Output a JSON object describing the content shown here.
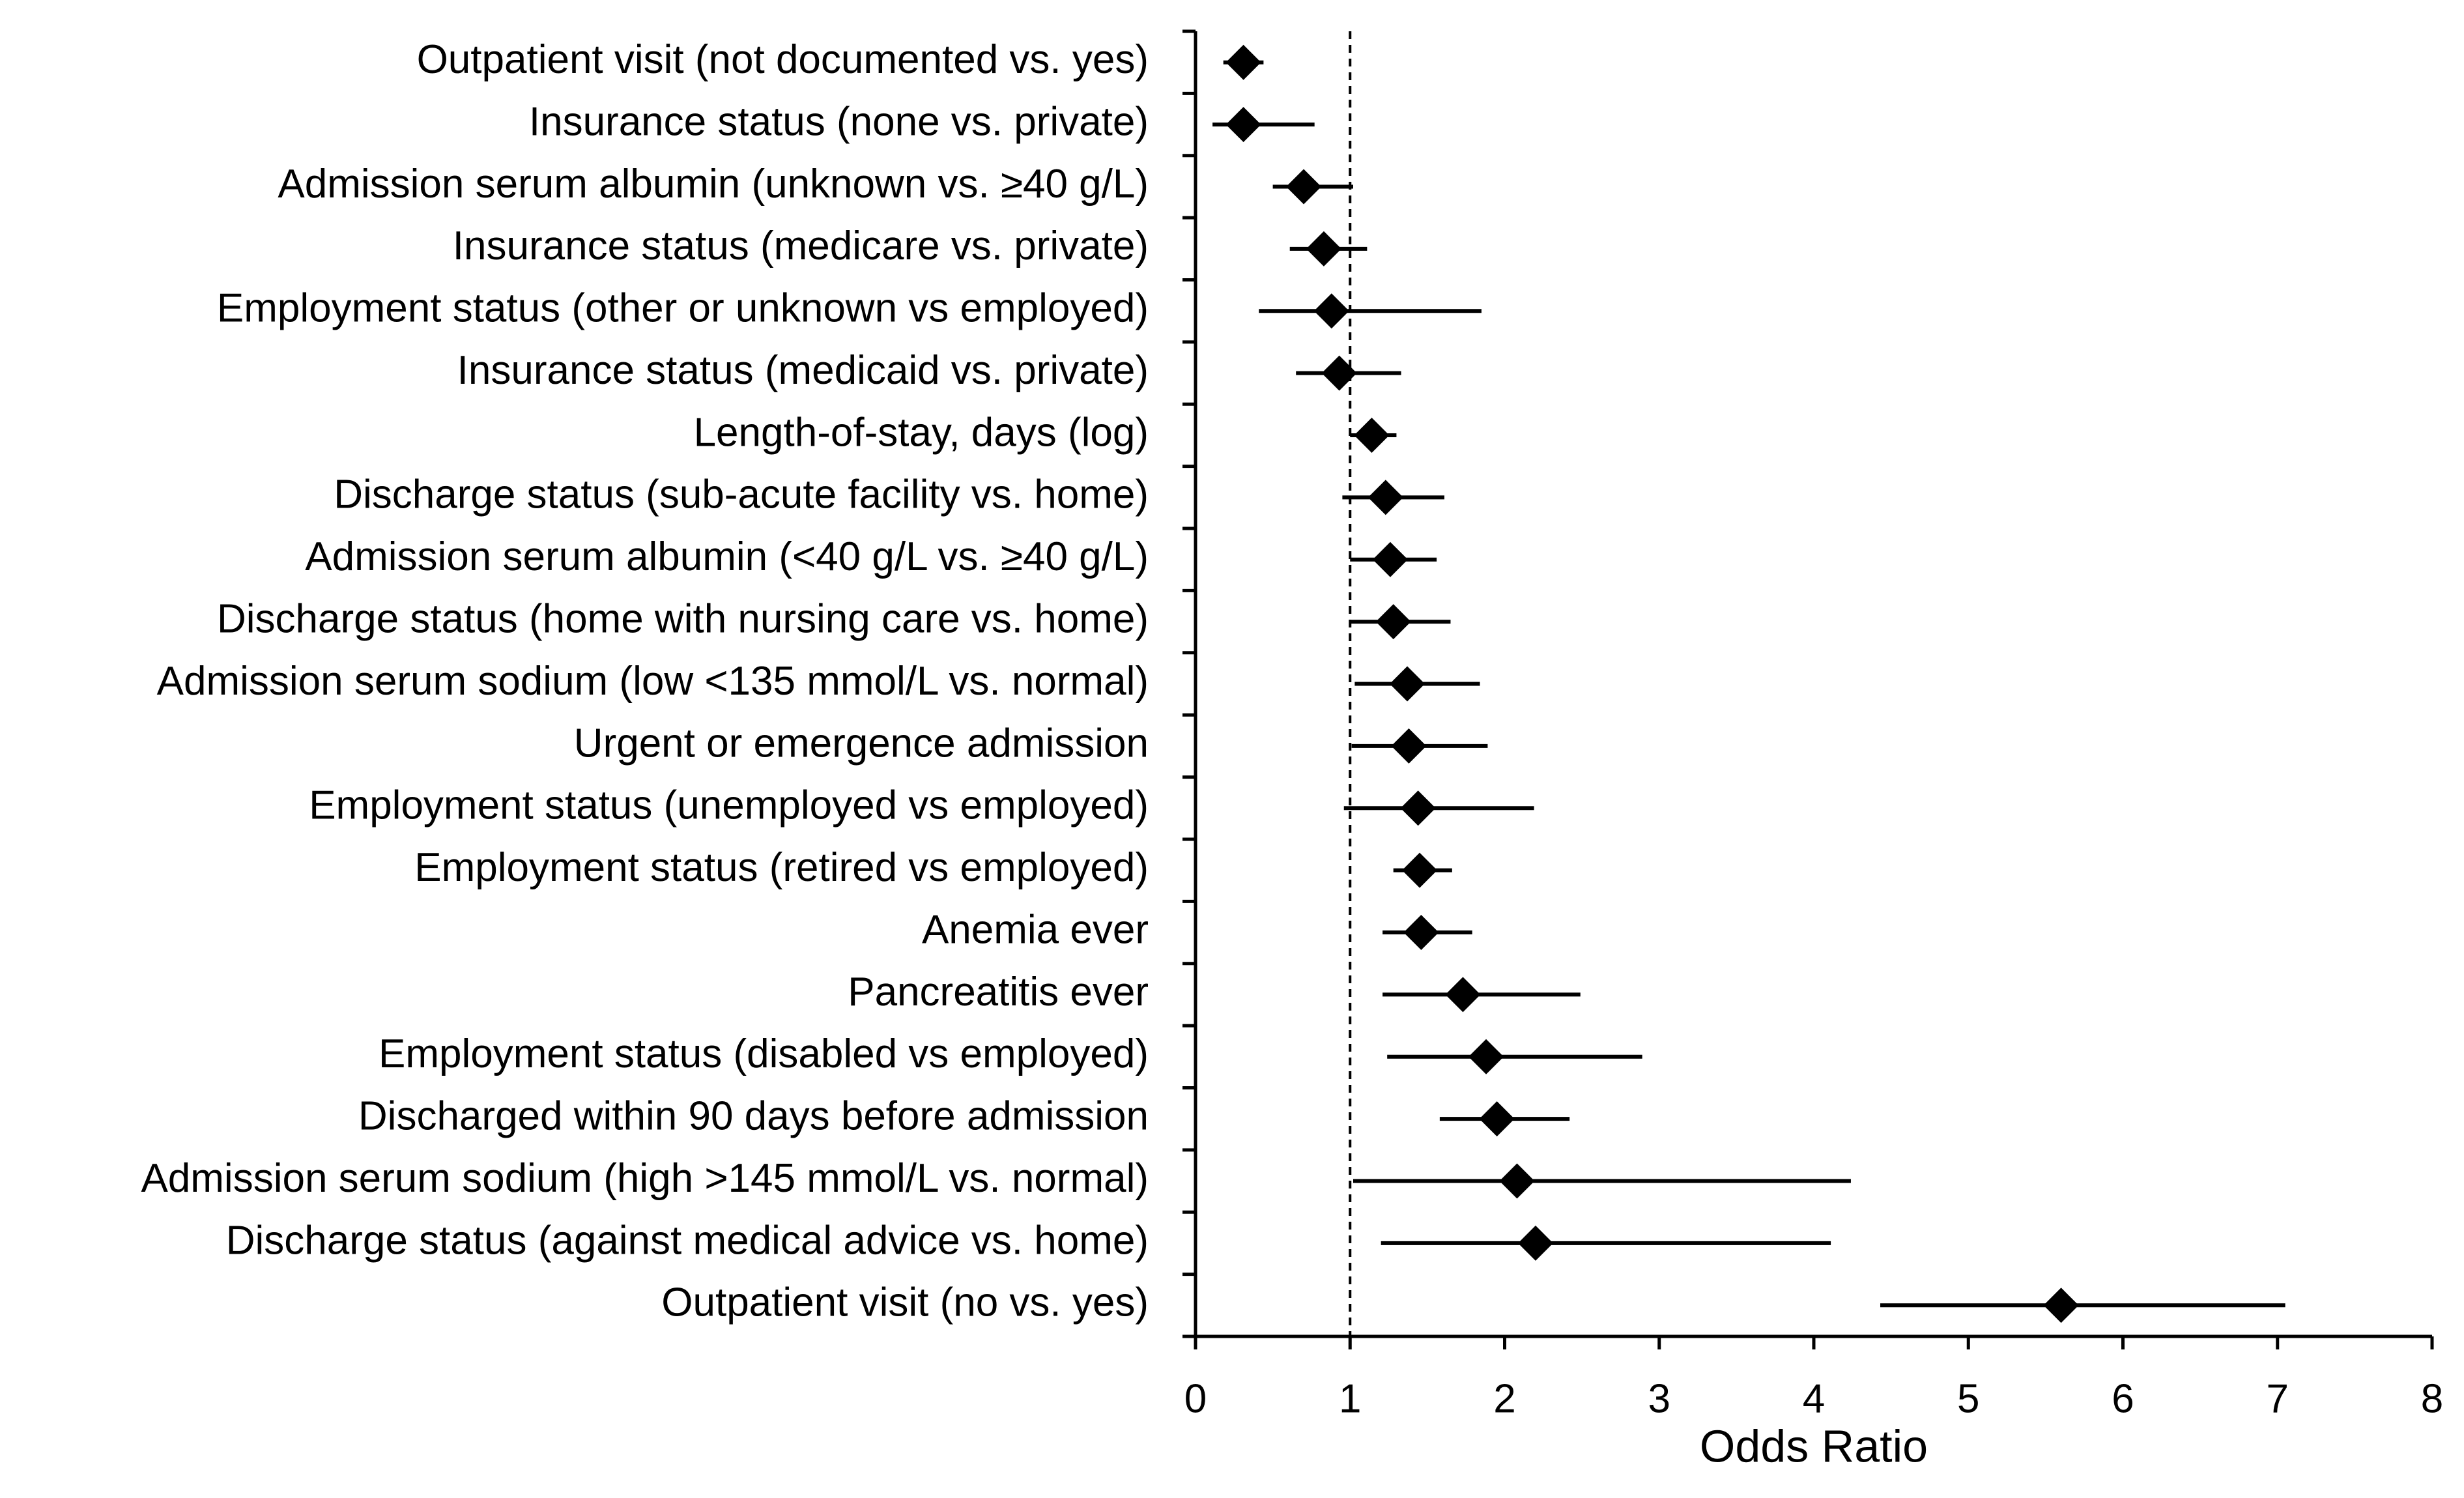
{
  "chart_data": {
    "type": "forest",
    "xlabel": "Odds Ratio",
    "categories": [
      "Outpatient visit (not documented vs. yes)",
      "Insurance status (none vs. private)",
      "Admission serum albumin (unknown vs. ≥40 g/L)",
      "Insurance status (medicare vs. private)",
      "Employment status (other or unknown vs employed)",
      "Insurance status (medicaid vs. private)",
      "Length-of-stay, days (log)",
      "Discharge status (sub-acute facility vs. home)",
      "Admission serum albumin (<40 g/L vs. ≥40 g/L)",
      "Discharge status (home with nursing care vs. home)",
      "Admission serum sodium (low <135 mmol/L vs. normal)",
      "Urgent or emergence admission",
      "Employment status (unemployed vs employed)",
      "Employment status (retired vs employed)",
      "Anemia ever",
      "Pancreatitis ever",
      "Employment status (disabled vs employed)",
      "Discharged within 90 days before admission",
      "Admission serum sodium (high >145 mmol/L vs. normal)",
      "Discharge status (against medical advice vs. home)",
      "Outpatient visit (no vs. yes)"
    ],
    "values": [
      0.31,
      0.31,
      0.7,
      0.83,
      0.88,
      0.93,
      1.14,
      1.23,
      1.26,
      1.28,
      1.37,
      1.38,
      1.44,
      1.45,
      1.46,
      1.73,
      1.88,
      1.95,
      2.08,
      2.2,
      5.6
    ],
    "lower": [
      0.18,
      0.11,
      0.5,
      0.61,
      0.41,
      0.65,
      1.0,
      0.95,
      1.0,
      1.0,
      1.03,
      1.01,
      0.96,
      1.28,
      1.21,
      1.21,
      1.24,
      1.58,
      1.02,
      1.2,
      4.43
    ],
    "upper": [
      0.44,
      0.77,
      1.02,
      1.11,
      1.85,
      1.33,
      1.3,
      1.61,
      1.56,
      1.65,
      1.84,
      1.89,
      2.19,
      1.66,
      1.79,
      2.49,
      2.89,
      2.42,
      4.24,
      4.11,
      7.05
    ],
    "color": "#000000",
    "reference_line": 1,
    "xlim": [
      0,
      8
    ],
    "xticks": [
      0,
      1,
      2,
      3,
      4,
      5,
      6,
      7,
      8
    ]
  }
}
